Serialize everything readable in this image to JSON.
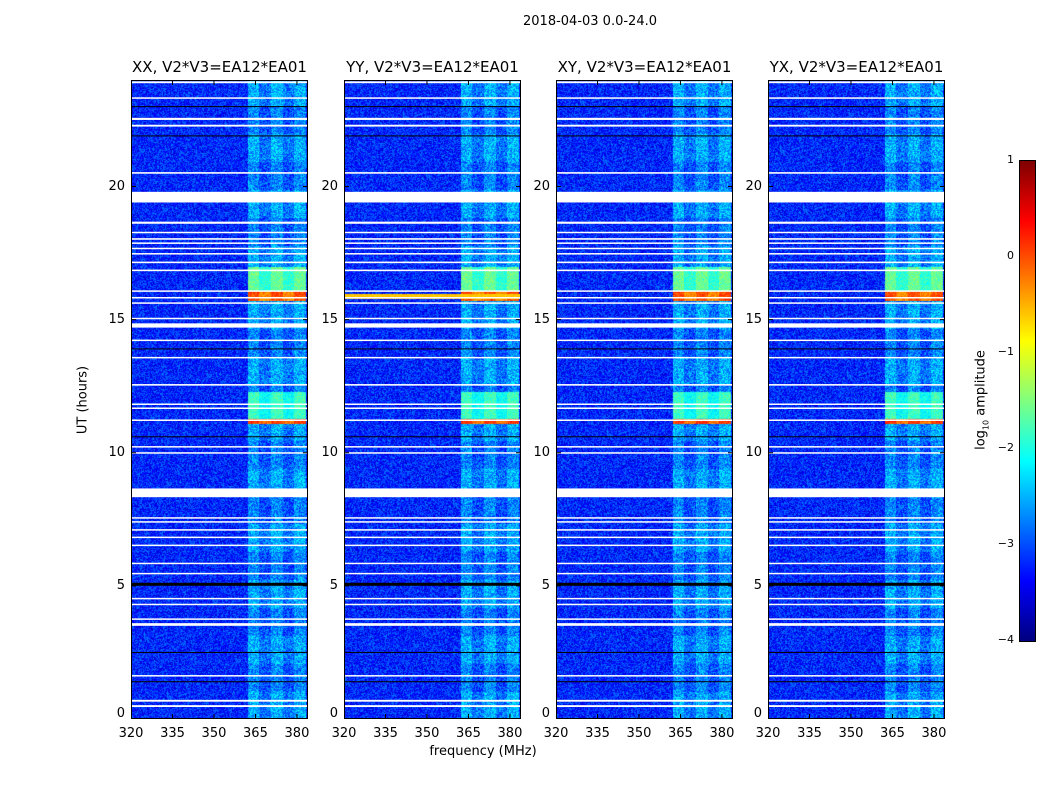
{
  "suptitle": "2018-04-03 0.0-24.0",
  "chart_data": {
    "type": "heatmap",
    "title": "2018-04-03 0.0-24.0",
    "xlabel": "frequency (MHz)",
    "ylabel": "UT (hours)",
    "xlim": [
      320,
      384
    ],
    "ylim": [
      0,
      24
    ],
    "xticks": [
      "320",
      "335",
      "350",
      "365",
      "380"
    ],
    "xtick_values": [
      320,
      335,
      350,
      365,
      380
    ],
    "yticks": [
      "0",
      "5",
      "10",
      "15",
      "20"
    ],
    "ytick_values": [
      0,
      5,
      10,
      15,
      20
    ],
    "colormap": "jet",
    "colorbar": {
      "label_prefix": "log",
      "label_sub": "10",
      "label_suffix": " amplitude",
      "range": [
        -4,
        1
      ],
      "ticks": [
        "1",
        "0",
        "−1",
        "−2",
        "−3",
        "−4"
      ],
      "tick_values": [
        1,
        0,
        -1,
        -2,
        -3,
        -4
      ]
    },
    "panels": [
      {
        "title": "XX, V2*V3=EA12*EA01",
        "rfi_full_band_15_8": false
      },
      {
        "title": "YY, V2*V3=EA12*EA01",
        "rfi_full_band_15_8": true
      },
      {
        "title": "XY, V2*V3=EA12*EA01",
        "rfi_full_band_15_8": false
      },
      {
        "title": "YX, V2*V3=EA12*EA01",
        "rfi_full_band_15_8": false
      }
    ],
    "background_level": -3.2,
    "rfi_band_mhz": [
      362,
      383
    ],
    "rfi_events": [
      {
        "ut_start": 15.7,
        "ut_end": 16.1,
        "level": 0.0
      },
      {
        "ut_start": 16.1,
        "ut_end": 17.0,
        "level": -1.6
      },
      {
        "ut_start": 11.1,
        "ut_end": 11.3,
        "level": 0.1
      },
      {
        "ut_start": 11.3,
        "ut_end": 12.3,
        "level": -1.8
      }
    ],
    "flagged_ut_ranges": [
      [
        23.88,
        23.95
      ],
      [
        23.3,
        23.35
      ],
      [
        22.5,
        22.58
      ],
      [
        22.25,
        22.32
      ],
      [
        20.48,
        20.54
      ],
      [
        19.4,
        19.8
      ],
      [
        18.6,
        18.68
      ],
      [
        18.25,
        18.3
      ],
      [
        18.0,
        18.06
      ],
      [
        17.85,
        17.9
      ],
      [
        17.65,
        17.7
      ],
      [
        17.45,
        17.5
      ],
      [
        17.12,
        17.18
      ],
      [
        16.82,
        16.88
      ],
      [
        16.05,
        16.1
      ],
      [
        15.8,
        15.85
      ],
      [
        15.6,
        15.65
      ],
      [
        15.02,
        15.07
      ],
      [
        14.7,
        14.86
      ],
      [
        14.2,
        14.25
      ],
      [
        13.55,
        13.6
      ],
      [
        12.52,
        12.58
      ],
      [
        11.8,
        11.85
      ],
      [
        11.65,
        11.7
      ],
      [
        11.2,
        11.25
      ],
      [
        10.2,
        10.25
      ],
      [
        9.97,
        10.02
      ],
      [
        8.33,
        8.66
      ],
      [
        7.53,
        7.58
      ],
      [
        7.38,
        7.43
      ],
      [
        7.08,
        7.13
      ],
      [
        6.8,
        6.85
      ],
      [
        6.5,
        6.55
      ],
      [
        5.82,
        5.87
      ],
      [
        5.44,
        5.49
      ],
      [
        4.5,
        4.55
      ],
      [
        4.28,
        4.33
      ],
      [
        3.73,
        3.78
      ],
      [
        3.5,
        3.6
      ],
      [
        1.6,
        1.65
      ],
      [
        0.65,
        0.72
      ],
      [
        0.45,
        0.52
      ]
    ],
    "dark_ut_lines": [
      5.06,
      2.5,
      1.4,
      10.6,
      13.9,
      21.9,
      23.0
    ]
  }
}
